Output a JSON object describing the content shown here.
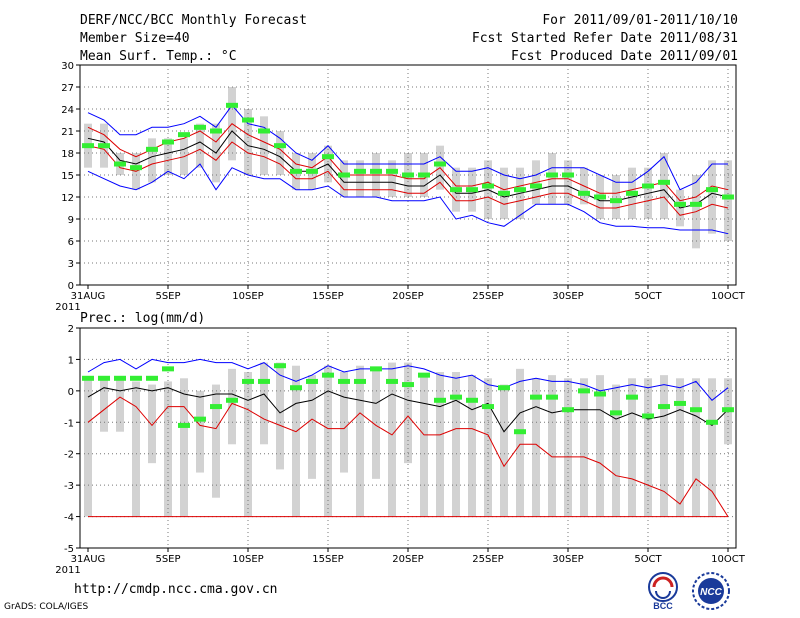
{
  "header": {
    "title": "DERF/NCC/BCC Monthly Forecast",
    "member_size": "Member Size=40",
    "variable": "Mean Surf. Temp.: °C",
    "period": "For 2011/09/01-2011/10/10",
    "started": "Fcst Started Refer Date 2011/08/31",
    "produced": "Fcst Produced Date 2011/09/01"
  },
  "footer": {
    "url": "http://cmdp.ncc.cma.gov.cn",
    "grads": "GrADS: COLA/IGES"
  },
  "logos": {
    "bcc": "BCC",
    "ncc": "NCC"
  },
  "colors": {
    "ensemble_max_min": "#0000ff",
    "ensemble_percentile": "#dd0000",
    "ensemble_mean": "#000000",
    "observed_climate": "#33ee33",
    "spread_bars": "#d2d2d2",
    "grid": "#777777"
  },
  "chart_data": [
    {
      "type": "line",
      "title": "Mean Surf. Temp.: °C",
      "x_start_label": "31AUG",
      "year_label": "2011",
      "x_tick_labels": [
        "5SEP",
        "10SEP",
        "15SEP",
        "20SEP",
        "25SEP",
        "30SEP",
        "5OCT",
        "10OCT"
      ],
      "ylim": [
        0,
        30
      ],
      "y_ticks": [
        0,
        3,
        6,
        9,
        12,
        15,
        18,
        21,
        24,
        27,
        30
      ],
      "grid": true,
      "days": 41,
      "series": [
        {
          "name": "max",
          "values": [
            23.5,
            22.5,
            20.5,
            20.5,
            21.5,
            21.5,
            22,
            23,
            21.5,
            24.5,
            22,
            21.5,
            20,
            18,
            17,
            19,
            16.5,
            16.5,
            16.5,
            16.5,
            16.5,
            16.5,
            17.5,
            15.5,
            15.5,
            16,
            15,
            14.5,
            15,
            16,
            16,
            16,
            15,
            14,
            14,
            15.5,
            17.5,
            13,
            14,
            16.5,
            16.5
          ]
        },
        {
          "name": "p_upper",
          "values": [
            21.5,
            20.5,
            18.5,
            17.5,
            18.5,
            19.5,
            20,
            21,
            19.5,
            22,
            20.5,
            19.5,
            18.5,
            16.5,
            16,
            17.5,
            15,
            15,
            15,
            15,
            14.5,
            14.5,
            16,
            13.5,
            13.5,
            14,
            13,
            13.5,
            14,
            14.5,
            14.5,
            13.5,
            12.5,
            12.5,
            13,
            13.5,
            14,
            11.5,
            12,
            13.5,
            13
          ]
        },
        {
          "name": "mean",
          "values": [
            20,
            19.5,
            17,
            16.5,
            17.5,
            18,
            18.5,
            19.5,
            18,
            21,
            19,
            18.5,
            17.5,
            15.5,
            15.5,
            16.5,
            14,
            14,
            14,
            14,
            13.5,
            13.5,
            15,
            12.5,
            12.5,
            13,
            12,
            12.5,
            13,
            13.5,
            13.5,
            12.5,
            11.5,
            11.5,
            12,
            12.5,
            13,
            10.5,
            11,
            12.5,
            12
          ]
        },
        {
          "name": "p_lower",
          "values": [
            19,
            18.5,
            16,
            15.5,
            16.5,
            17,
            17.5,
            18.5,
            17,
            19.5,
            18,
            17.5,
            16.5,
            14.5,
            14.5,
            15.5,
            13,
            13,
            13,
            13,
            12.5,
            12.5,
            14,
            11.5,
            11.5,
            12,
            11,
            11.5,
            12,
            12.5,
            12.5,
            11.5,
            10.5,
            10.5,
            11,
            11.5,
            12,
            9.5,
            10,
            11,
            10.5
          ]
        },
        {
          "name": "min",
          "values": [
            15.5,
            14.5,
            13.5,
            13,
            14,
            15.5,
            14.5,
            16.5,
            13,
            16,
            15,
            14.5,
            14.5,
            13,
            13,
            13.5,
            12,
            12,
            12,
            11.5,
            11.5,
            11.5,
            12,
            9,
            9.5,
            8.5,
            8,
            9.5,
            11,
            11,
            11,
            10,
            8.5,
            8,
            8,
            7.8,
            7.8,
            7.5,
            7.5,
            7.5,
            7
          ]
        }
      ],
      "spread_bars": [
        [
          16,
          22
        ],
        [
          16,
          22
        ],
        [
          15,
          18
        ],
        [
          13,
          18
        ],
        [
          14,
          20
        ],
        [
          15,
          20
        ],
        [
          15,
          20
        ],
        [
          16,
          22
        ],
        [
          14,
          22
        ],
        [
          17,
          27
        ],
        [
          15,
          24
        ],
        [
          15,
          23
        ],
        [
          15,
          21
        ],
        [
          13,
          18
        ],
        [
          13,
          18
        ],
        [
          14,
          19
        ],
        [
          12,
          17
        ],
        [
          12,
          17
        ],
        [
          12,
          18
        ],
        [
          12,
          17
        ],
        [
          12,
          18
        ],
        [
          12,
          18
        ],
        [
          13,
          19
        ],
        [
          10,
          16
        ],
        [
          10,
          16
        ],
        [
          9,
          17
        ],
        [
          9,
          16
        ],
        [
          9,
          16
        ],
        [
          11,
          17
        ],
        [
          11,
          18
        ],
        [
          11,
          17
        ],
        [
          11,
          16
        ],
        [
          9,
          15
        ],
        [
          9,
          15
        ],
        [
          9,
          16
        ],
        [
          9,
          16
        ],
        [
          9,
          18
        ],
        [
          8,
          13
        ],
        [
          5,
          15
        ],
        [
          7,
          17
        ],
        [
          6,
          17
        ]
      ],
      "observed": [
        19,
        19,
        16.5,
        16,
        18.5,
        19.5,
        20.5,
        21.5,
        21,
        24.5,
        22.5,
        21,
        19,
        15.5,
        15.5,
        17.5,
        15,
        15.5,
        15.5,
        15.5,
        15,
        15,
        16.5,
        13,
        13,
        13.5,
        12.5,
        13,
        13.5,
        15,
        15,
        12.5,
        12,
        11.5,
        12.5,
        13.5,
        14,
        11,
        11,
        13,
        12
      ]
    },
    {
      "type": "line",
      "title": "Prec.: log(mm/d)",
      "x_start_label": "31AUG",
      "year_label": "2011",
      "x_tick_labels": [
        "5SEP",
        "10SEP",
        "15SEP",
        "20SEP",
        "25SEP",
        "30SEP",
        "5OCT",
        "10OCT"
      ],
      "ylim": [
        -5,
        2
      ],
      "y_ticks": [
        -5,
        -4,
        -3,
        -2,
        -1,
        0,
        1,
        2
      ],
      "grid": true,
      "days": 41,
      "series": [
        {
          "name": "max",
          "values": [
            0.6,
            0.9,
            1,
            0.7,
            1,
            0.9,
            0.9,
            1,
            0.9,
            0.9,
            0.7,
            0.9,
            0.5,
            0.3,
            0.5,
            0.8,
            0.6,
            0.7,
            0.7,
            0.7,
            0.8,
            0.7,
            0.5,
            0.4,
            0.5,
            0.2,
            0.1,
            0.3,
            0.4,
            0.3,
            0.3,
            0.2,
            0,
            0.1,
            0.2,
            0.1,
            0.2,
            0.1,
            0.3,
            -0.3,
            0.1
          ]
        },
        {
          "name": "mean",
          "values": [
            -0.2,
            0.1,
            0,
            0.1,
            0,
            0.1,
            -0.1,
            -0.2,
            -0.1,
            -0.1,
            -0.3,
            -0.1,
            -0.7,
            -0.4,
            -0.3,
            0,
            -0.2,
            -0.3,
            -0.4,
            -0.1,
            -0.3,
            -0.4,
            -0.5,
            -0.3,
            -0.6,
            -0.4,
            -1.3,
            -0.7,
            -0.5,
            -0.7,
            -0.6,
            -0.6,
            -0.6,
            -0.9,
            -0.7,
            -0.9,
            -0.8,
            -0.6,
            -0.8,
            -1.1,
            -0.6
          ]
        },
        {
          "name": "min",
          "values": [
            -1,
            -0.6,
            -0.2,
            -0.5,
            -1.1,
            -0.5,
            -0.5,
            -1.1,
            -1.2,
            -0.4,
            -0.6,
            -0.9,
            -1.1,
            -1.3,
            -0.9,
            -1.2,
            -1.2,
            -0.7,
            -1.1,
            -1.4,
            -0.8,
            -1.4,
            -1.4,
            -1.2,
            -1.2,
            -1.4,
            -2.4,
            -1.7,
            -1.7,
            -2.1,
            -2.1,
            -2.1,
            -2.3,
            -2.7,
            -2.8,
            -3,
            -3.2,
            -3.6,
            -2.8,
            -3.2,
            -4
          ]
        },
        {
          "name": "floor",
          "values": [
            -4,
            -4,
            -4,
            -4,
            -4,
            -4,
            -4,
            -4,
            -4,
            -4,
            -4,
            -4,
            -4,
            -4,
            -4,
            -4,
            -4,
            -4,
            -4,
            -4,
            -4,
            -4,
            -4,
            -4,
            -4,
            -4,
            -4,
            -4,
            -4,
            -4,
            -4,
            -4,
            -4,
            -4,
            -4,
            -4,
            -4,
            -4,
            -4,
            -4,
            -4
          ]
        }
      ],
      "spread_bars": [
        [
          -4,
          0.4
        ],
        [
          -1.3,
          0.4
        ],
        [
          -1.3,
          0.4
        ],
        [
          -4,
          0.3
        ],
        [
          -2.3,
          0.2
        ],
        [
          -4,
          0.3
        ],
        [
          -4,
          0.4
        ],
        [
          -2.6,
          0
        ],
        [
          -3.4,
          0.2
        ],
        [
          -1.7,
          0.7
        ],
        [
          -4,
          0.6
        ],
        [
          -1.7,
          0.9
        ],
        [
          -2.5,
          0.9
        ],
        [
          -4,
          0.8
        ],
        [
          -2.8,
          0.5
        ],
        [
          -4,
          0.8
        ],
        [
          -2.6,
          0.6
        ],
        [
          -4,
          0.8
        ],
        [
          -2.8,
          0.7
        ],
        [
          -4,
          0.9
        ],
        [
          -2.3,
          0.9
        ],
        [
          -4,
          0.5
        ],
        [
          -4,
          0.6
        ],
        [
          -4,
          0.6
        ],
        [
          -4,
          0.5
        ],
        [
          -4,
          0.4
        ],
        [
          -4,
          0.2
        ],
        [
          -4,
          0.7
        ],
        [
          -4,
          0.4
        ],
        [
          -4,
          0.5
        ],
        [
          -4,
          0.4
        ],
        [
          -4,
          0.4
        ],
        [
          -4,
          0.5
        ],
        [
          -4,
          0.2
        ],
        [
          -4,
          0.4
        ],
        [
          -4,
          0.4
        ],
        [
          -4,
          0.5
        ],
        [
          -4,
          0.4
        ],
        [
          -4,
          0.4
        ],
        [
          -4,
          0.4
        ],
        [
          -1.7,
          0.4
        ]
      ],
      "observed": [
        0.4,
        0.4,
        0.4,
        0.4,
        0.4,
        0.7,
        -1.1,
        -0.9,
        -0.5,
        -0.3,
        0.3,
        0.3,
        0.8,
        0.1,
        0.3,
        0.5,
        0.3,
        0.3,
        0.7,
        0.3,
        0.2,
        0.5,
        -0.3,
        -0.2,
        -0.3,
        -0.5,
        0.1,
        -1.3,
        -0.2,
        -0.2,
        -0.6,
        0,
        -0.1,
        -0.7,
        -0.2,
        -0.8,
        -0.5,
        -0.4,
        -0.6,
        -1,
        -0.6
      ]
    }
  ]
}
